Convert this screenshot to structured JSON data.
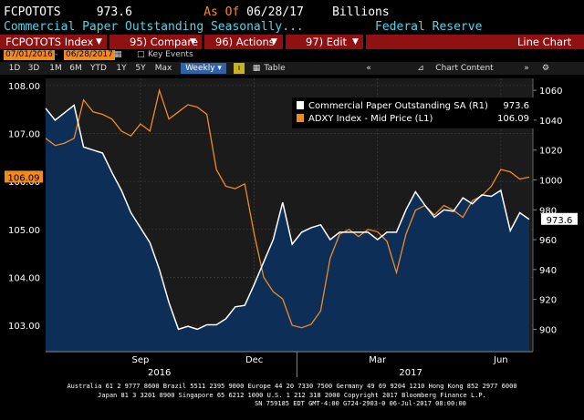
{
  "header": {
    "ticker": "FCPOTOTS",
    "value": "973.6",
    "as_of_label": "As Of",
    "as_of_date": "06/28/17",
    "units": "Billions",
    "description": "Commercial Paper Outstanding Seasonally...",
    "source": "Federal Reserve"
  },
  "toolbar": {
    "index_label": "FCPOTOTS Index",
    "compare_label": "95) Compare",
    "actions_label": "96) Actions",
    "edit_label": "97) Edit",
    "chart_type_label": "Line Chart"
  },
  "range": {
    "start": "07/01/2016",
    "end": "06/28/2017",
    "key_events_label": "Key Events"
  },
  "zoom": {
    "buttons": [
      "1D",
      "3D",
      "1M",
      "6M",
      "YTD",
      "1Y",
      "5Y",
      "Max"
    ],
    "frequency": "Weekly",
    "table_label": "Table",
    "chart_content_label": "Chart Content"
  },
  "footer": {
    "line1": "Australia 61 2 9777 8600 Brazil 5511 2395 9000 Europe 44 20 7330 7500 Germany 49 69 9204 1210 Hong Kong 852 2977 6000",
    "line2": "Japan 81 3 3201 8900        Singapore 65 6212 1000        U.S. 1 212 318 2000        Copyright 2017 Bloomberg Finance L.P.",
    "line3": "SN 759185 EDT  GMT-4:00 G724-2903-0 06-Jul-2017 08:00:00"
  },
  "colors": {
    "cp_line": "#ffffff",
    "adxy_line": "#f28a1e",
    "area_fill": "#0d2f57",
    "toolbar_bg": "#8f1111",
    "header_cyan": "#4fd6e8"
  },
  "chart_data": {
    "type": "line",
    "x_ticks": [
      "Sep",
      "Dec",
      "Mar",
      "Jun"
    ],
    "year_labels": [
      "2016",
      "2017"
    ],
    "left_axis": {
      "ticks": [
        103.0,
        104.0,
        105.0,
        106.0,
        107.0,
        108.0
      ],
      "range": [
        102.45,
        108.15
      ]
    },
    "right_axis": {
      "ticks": [
        900,
        920,
        940,
        960,
        980,
        1000,
        1020,
        1040,
        1060
      ],
      "range": [
        885,
        1068
      ]
    },
    "series": [
      {
        "name": "Commercial Paper Outstanding SA (R1)",
        "last_value": "973.6",
        "axis": "right",
        "weeks": [
          0,
          1,
          2,
          3,
          4,
          5,
          6,
          7,
          8,
          9,
          10,
          11,
          12,
          13,
          14,
          15,
          16,
          17,
          18,
          19,
          20,
          21,
          22,
          23,
          24,
          25,
          26,
          27,
          28,
          29,
          30,
          31,
          32,
          33,
          34,
          35,
          36,
          37,
          38,
          39,
          40,
          41,
          42,
          43,
          44,
          45,
          46,
          47,
          48,
          49,
          50,
          51
        ],
        "values": [
          1048,
          1040,
          1045,
          1050,
          1022,
          1020,
          1018,
          1005,
          993,
          978,
          968,
          958,
          940,
          918,
          900,
          902,
          900,
          903,
          903,
          907,
          915,
          916,
          930,
          945,
          960,
          985,
          957,
          965,
          968,
          970,
          960,
          965,
          965,
          965,
          965,
          960,
          965,
          965,
          980,
          992,
          983,
          975,
          980,
          979,
          988,
          984,
          990,
          989,
          993,
          966,
          978,
          973.6
        ]
      },
      {
        "name": "ADXY Index - Mid Price (L1)",
        "last_value": "106.09",
        "axis": "left",
        "weeks": [
          0,
          1,
          2,
          3,
          4,
          5,
          6,
          7,
          8,
          9,
          10,
          11,
          12,
          13,
          14,
          15,
          16,
          17,
          18,
          19,
          20,
          21,
          22,
          23,
          24,
          25,
          26,
          27,
          28,
          29,
          30,
          31,
          32,
          33,
          34,
          35,
          36,
          37,
          38,
          39,
          40,
          41,
          42,
          43,
          44,
          45,
          46,
          47,
          48,
          49,
          50,
          51
        ],
        "values": [
          106.9,
          106.75,
          106.8,
          106.9,
          107.7,
          107.45,
          107.4,
          107.3,
          107.05,
          106.95,
          107.2,
          107.05,
          107.9,
          107.3,
          107.45,
          107.6,
          107.55,
          107.4,
          106.25,
          105.9,
          105.85,
          105.95,
          104.9,
          104.0,
          103.7,
          103.55,
          103.0,
          102.95,
          103.02,
          103.3,
          104.4,
          104.9,
          105.0,
          104.85,
          105.0,
          104.95,
          104.75,
          104.1,
          104.9,
          105.4,
          105.5,
          105.3,
          105.5,
          105.4,
          105.25,
          105.6,
          105.7,
          105.9,
          106.25,
          106.2,
          106.05,
          106.09
        ]
      }
    ],
    "grid": true,
    "legend_position": "top-right"
  }
}
